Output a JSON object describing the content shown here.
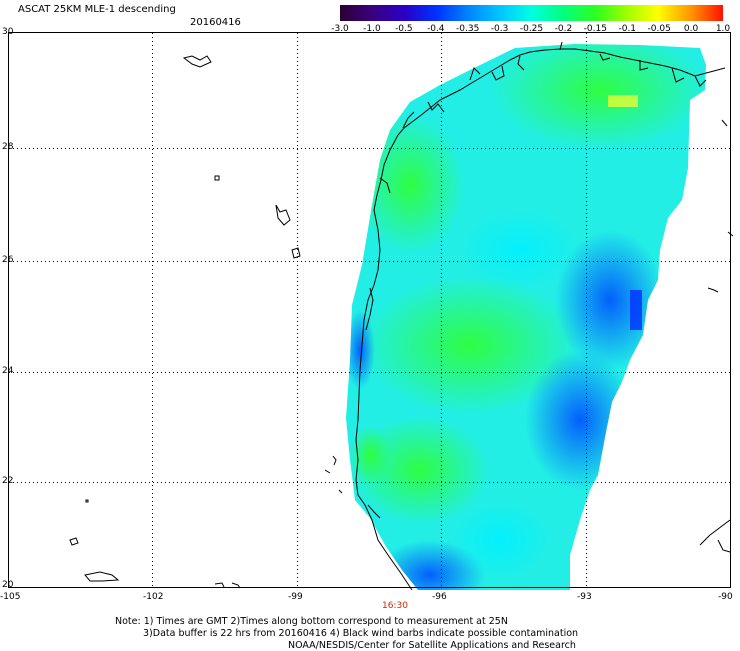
{
  "header": {
    "title": "ASCAT 25KM MLE-1 descending",
    "date": "20160416"
  },
  "colorbar": {
    "labels": [
      "-3.0",
      "-1.0",
      "-0.5",
      "-0.4",
      "-0.35",
      "-0.3",
      "-0.25",
      "-0.2",
      "-0.15",
      "-0.1",
      "-0.05",
      "0.0",
      "1.0"
    ],
    "colors": [
      "#2b0033",
      "#3a007a",
      "#2a00c8",
      "#0030ff",
      "#0080ff",
      "#00c8ff",
      "#00ffe0",
      "#00ff80",
      "#30ff20",
      "#a0ff00",
      "#ffff00",
      "#ff9000",
      "#ff1000"
    ]
  },
  "axes": {
    "x_ticks": [
      "-105",
      "-102",
      "-99",
      "-96",
      "-93",
      "-90"
    ],
    "y_ticks": [
      "30",
      "28",
      "26",
      "24",
      "22",
      "20"
    ],
    "time_label": "16:30"
  },
  "notes": {
    "line1": "Note: 1) Times are GMT 2)Times along bottom correspond to measurement at 25N",
    "line2": "3)Data buffer is 22 hrs from 20160416 4) Black wind barbs indicate possible contamination",
    "line3": "NOAA/NESDIS/Center for Satellite Applications and Research"
  }
}
